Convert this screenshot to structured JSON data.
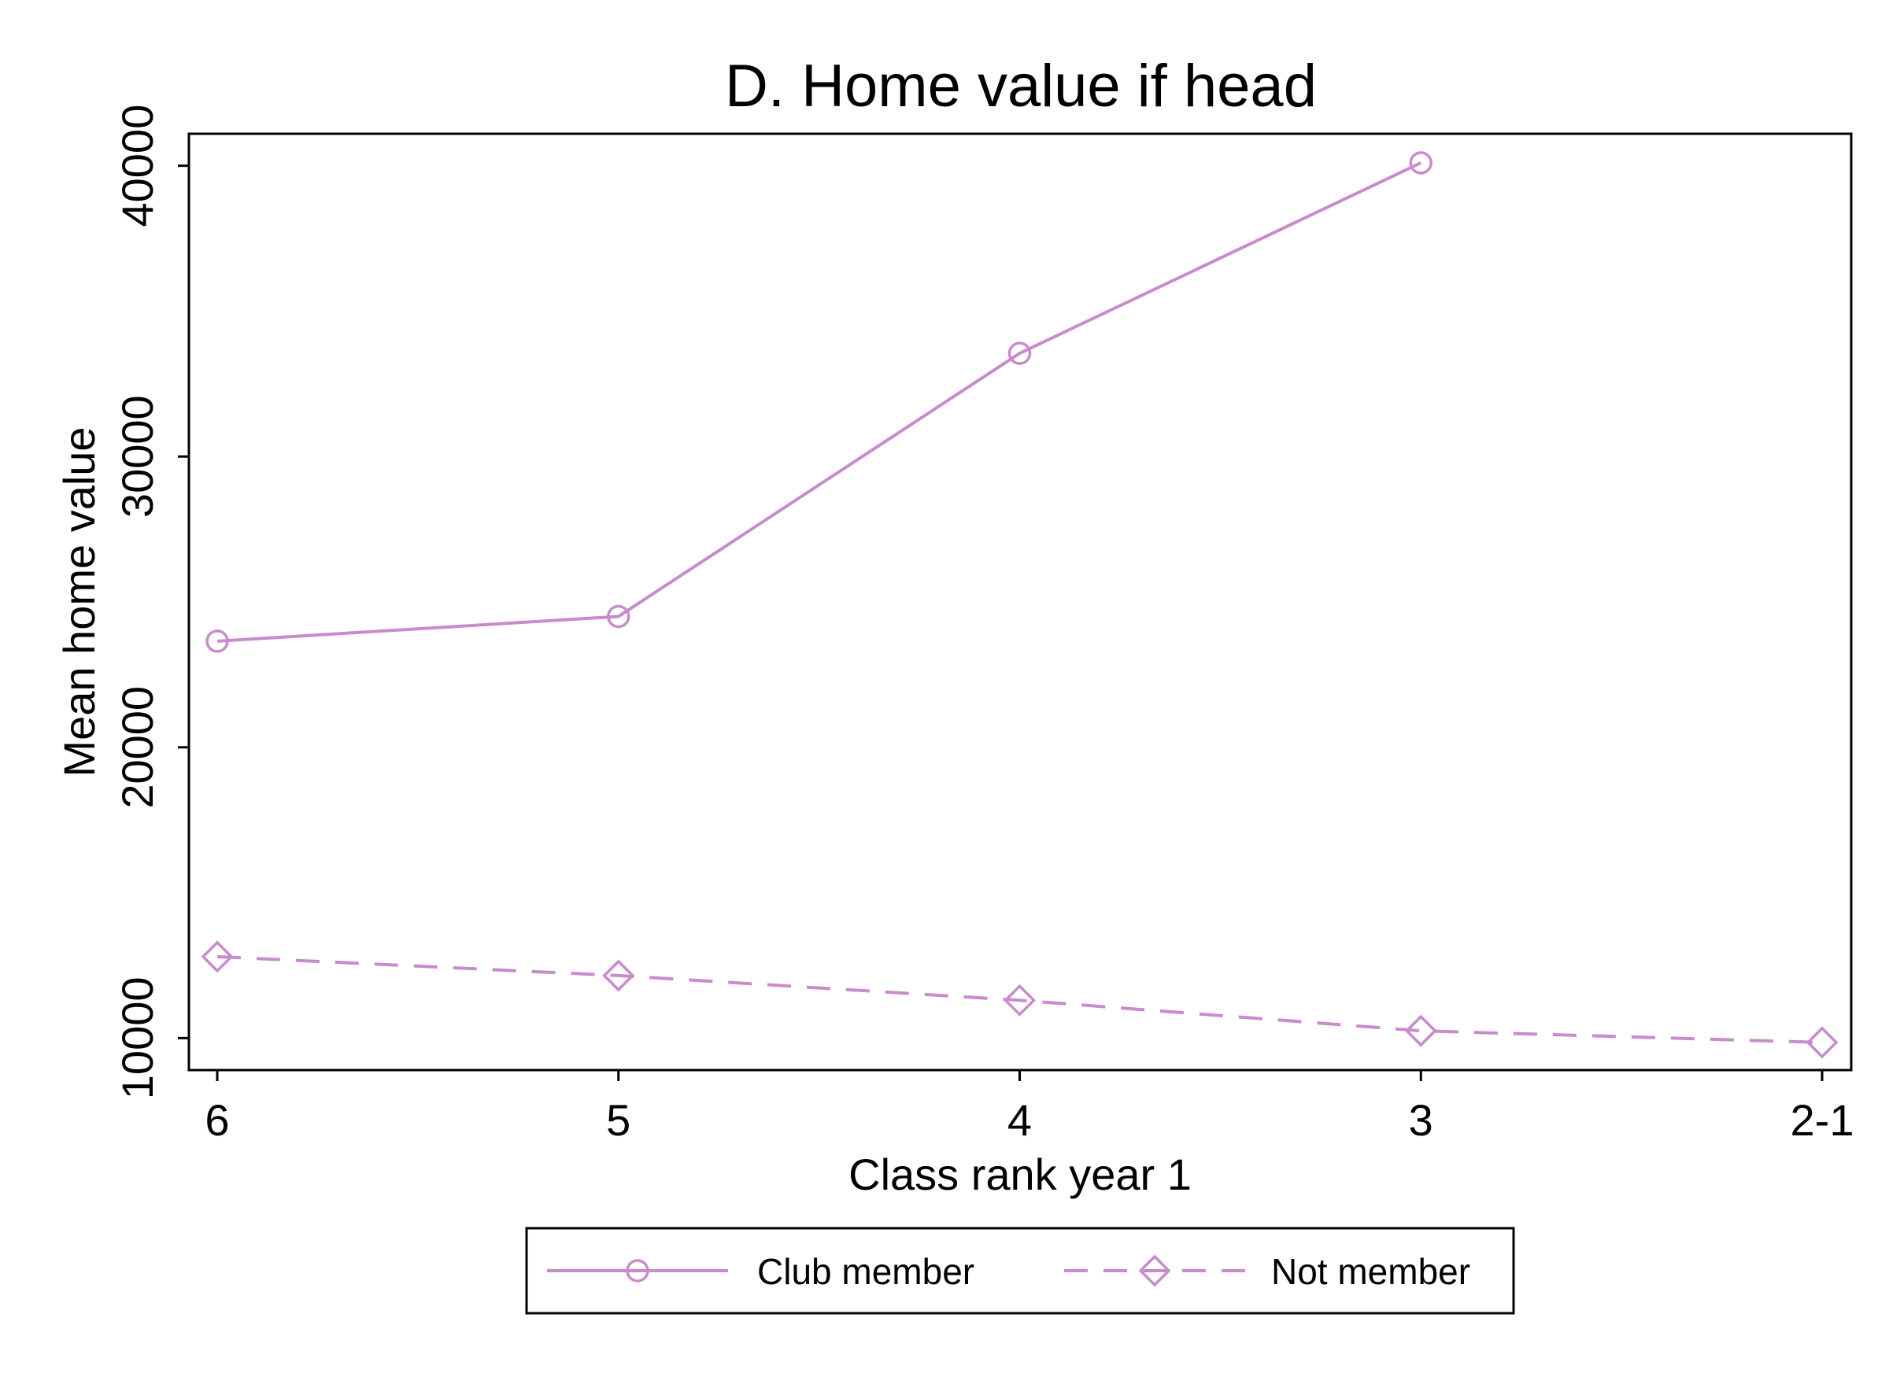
{
  "chart_data": {
    "type": "line",
    "title": "D. Home value if head",
    "xlabel": "Class rank year 1",
    "ylabel": "Mean home value",
    "categories": [
      "6",
      "5",
      "4",
      "3",
      "2-1"
    ],
    "yticks": [
      10000,
      20000,
      30000,
      40000
    ],
    "ylim": [
      8900,
      41100
    ],
    "grid": false,
    "legend_position": "bottom",
    "series": [
      {
        "name": "Club member",
        "marker": "circle",
        "line_style": "solid",
        "color": "#c88bcc",
        "values": [
          23650,
          24500,
          33550,
          40100,
          null
        ]
      },
      {
        "name": "Not member",
        "marker": "diamond",
        "line_style": "dashed",
        "color": "#c88bcc",
        "values": [
          12800,
          12150,
          11300,
          10250,
          9850
        ]
      }
    ]
  }
}
